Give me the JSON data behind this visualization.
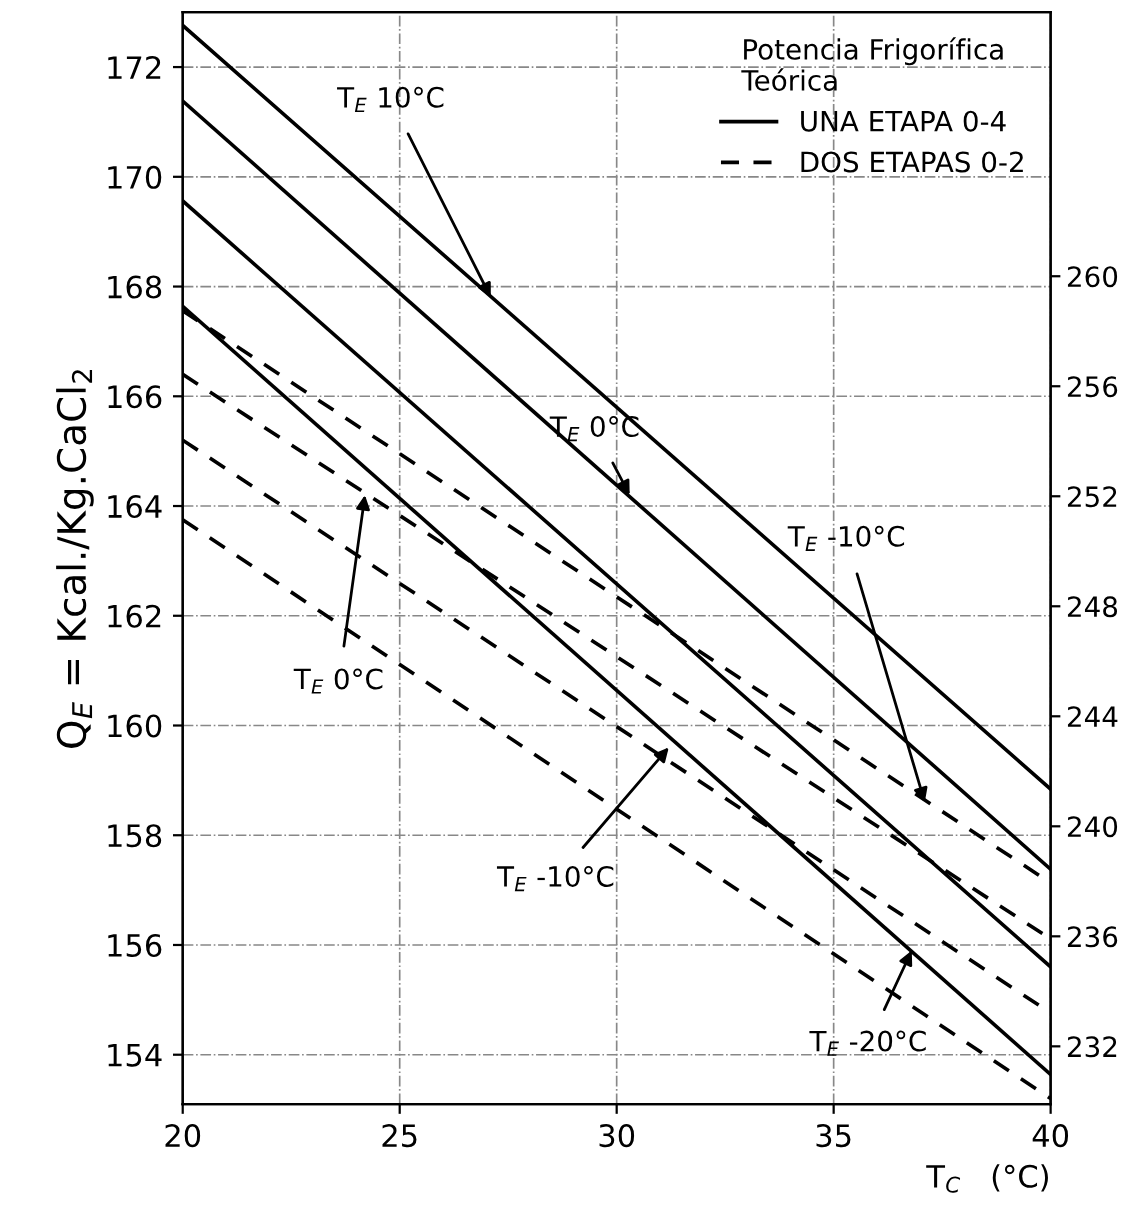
{
  "chart_data": {
    "type": "line",
    "xlabel": "T$_{C}$   (°C)",
    "ylabel": "Q$_{E}$ = Kcal./Kg.CaCl$_{2}$",
    "legend_title": "Potencia Frigorífica\nTeórica",
    "x": [
      20,
      40
    ],
    "series": [
      {
        "name": "UNA ETAPA 0-4",
        "color": "#000000",
        "line_style": "solid",
        "values": [
          172.76,
          158.84
        ]
      },
      {
        "color": "#000000",
        "line_style": "solid",
        "values": [
          171.38,
          157.38
        ]
      },
      {
        "color": "#000000",
        "line_style": "solid",
        "values": [
          169.56,
          155.6
        ]
      },
      {
        "color": "#000000",
        "line_style": "solid",
        "values": [
          167.64,
          153.64
        ]
      },
      {
        "name": "DOS ETAPAS 0-2",
        "color": "#000000",
        "line_style": "dashed",
        "values": [
          167.56,
          157.13
        ]
      },
      {
        "color": "#000000",
        "line_style": "dashed",
        "values": [
          166.4,
          156.11
        ]
      },
      {
        "color": "#000000",
        "line_style": "dashed",
        "values": [
          165.2,
          154.76
        ]
      },
      {
        "color": "#000000",
        "line_style": "dashed",
        "values": [
          163.75,
          153.2
        ]
      }
    ],
    "xlim": [
      20,
      40
    ],
    "xticks": [
      20,
      25,
      30,
      35,
      40
    ],
    "ylim": [
      153.1,
      173
    ],
    "yticks": [
      154,
      156,
      158,
      160,
      162,
      164,
      166,
      168,
      170,
      172
    ],
    "y2lim": [
      229.9,
      269.6
    ],
    "y2ticks": [
      232,
      236,
      240,
      244,
      248,
      252,
      256,
      260
    ],
    "annotations": [
      {
        "text": "T$_{E}$ 10°C",
        "x": 27.1,
        "y": 167.8
      },
      {
        "text": "T$_{E}$ 0°C",
        "x": 30.3,
        "y": 164.2
      },
      {
        "text": "T$_{E}$ -10°C",
        "x": 37.1,
        "y": 158.6
      },
      {
        "text": "T$_{E}$ 0°C",
        "x": 24.2,
        "y": 164.2
      },
      {
        "text": "T$_{E}$ -10°C",
        "x": 31.2,
        "y": 159.6
      },
      {
        "text": "T$_{E}$ -20°C",
        "x": 36.8,
        "y": 155.9
      }
    ],
    "grid": true,
    "legend": "top right",
    "marker": "none"
  }
}
